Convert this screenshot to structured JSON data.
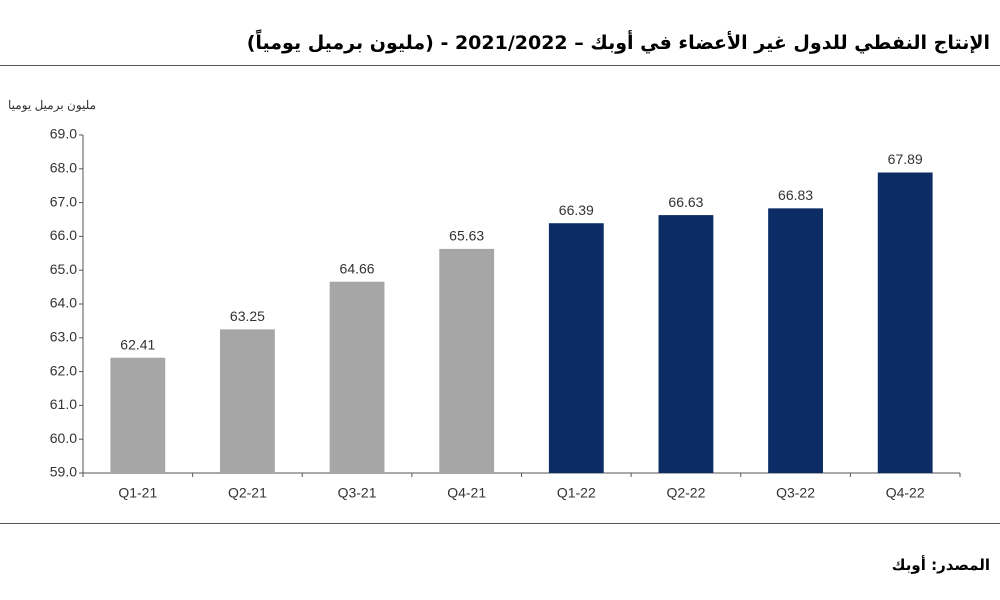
{
  "chart_data": {
    "type": "bar",
    "title": "الإنتاج النفطي للدول غير الأعضاء في أوبك – 2021/2022 -  (مليون برميل يومياً)",
    "y_label": "مليون برميل يوميا",
    "source": "المصدر: أوبك",
    "categories": [
      "Q1-21",
      "Q2-21",
      "Q3-21",
      "Q4-21",
      "Q1-22",
      "Q2-22",
      "Q3-22",
      "Q4-22"
    ],
    "values": [
      62.41,
      63.25,
      64.66,
      65.63,
      66.39,
      66.63,
      66.83,
      67.89
    ],
    "colors": [
      "#a6a6a6",
      "#a6a6a6",
      "#a6a6a6",
      "#a6a6a6",
      "#0b2c64",
      "#0b2c64",
      "#0b2c64",
      "#0b2c64"
    ],
    "ylim": [
      59,
      69
    ],
    "yticks": [
      {
        "value": 59,
        "label": "59.0"
      },
      {
        "value": 60,
        "label": "60.0"
      },
      {
        "value": 61,
        "label": "61.0"
      },
      {
        "value": 62,
        "label": "62.0"
      },
      {
        "value": 63,
        "label": "63.0"
      },
      {
        "value": 64,
        "label": "64.0"
      },
      {
        "value": 65,
        "label": "65.0"
      },
      {
        "value": 66,
        "label": "66.0"
      },
      {
        "value": 67,
        "label": "67.0"
      },
      {
        "value": 68,
        "label": "68.0"
      },
      {
        "value": 69,
        "label": "69.0"
      }
    ],
    "grid": false
  }
}
